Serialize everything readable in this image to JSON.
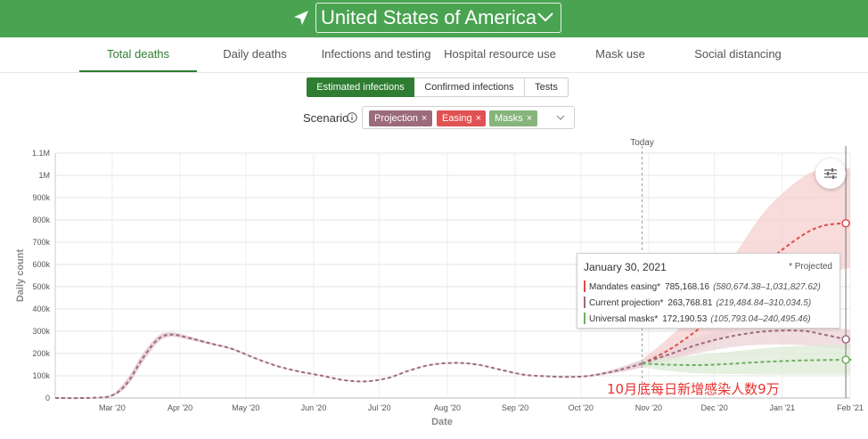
{
  "header": {
    "country": "United States of America",
    "location_icon": "location-arrow-icon",
    "chevron_icon": "chevron-down-icon",
    "color": "#4aa351"
  },
  "tabs": [
    {
      "label": "Total deaths",
      "active": true
    },
    {
      "label": "Daily deaths",
      "active": false
    },
    {
      "label": "Infections and testing",
      "active": false
    },
    {
      "label": "Hospital resource use",
      "active": false
    },
    {
      "label": "Mask use",
      "active": false
    },
    {
      "label": "Social distancing",
      "active": false
    }
  ],
  "toggle": [
    {
      "label": "Estimated infections",
      "active": true
    },
    {
      "label": "Confirmed infections",
      "active": false
    },
    {
      "label": "Tests",
      "active": false
    }
  ],
  "scenario": {
    "label": "Scenario",
    "chips": [
      {
        "label": "Projection",
        "color": "#9c6b7a"
      },
      {
        "label": "Easing",
        "color": "#e05253"
      },
      {
        "label": "Masks",
        "color": "#86b57c"
      }
    ],
    "remove_glyph": "×"
  },
  "chart_data": {
    "type": "line",
    "ylabel": "Daily count",
    "xlabel": "Date",
    "today_label": "Today",
    "today_date": "2020-10-29",
    "xlim": [
      "2020-02-04",
      "2021-02-01"
    ],
    "ylim": [
      0,
      1100000
    ],
    "yticks": [
      {
        "value": 0,
        "label": "0"
      },
      {
        "value": 100000,
        "label": "100k"
      },
      {
        "value": 200000,
        "label": "200k"
      },
      {
        "value": 300000,
        "label": "300k"
      },
      {
        "value": 400000,
        "label": "400k"
      },
      {
        "value": 500000,
        "label": "500k"
      },
      {
        "value": 600000,
        "label": "600k"
      },
      {
        "value": 700000,
        "label": "700k"
      },
      {
        "value": 800000,
        "label": "800k"
      },
      {
        "value": 900000,
        "label": "900k"
      },
      {
        "value": 1000000,
        "label": "1M"
      },
      {
        "value": 1100000,
        "label": "1.1M"
      }
    ],
    "xticks": [
      {
        "date": "2020-03-01",
        "label": "Mar '20"
      },
      {
        "date": "2020-04-01",
        "label": "Apr '20"
      },
      {
        "date": "2020-05-01",
        "label": "May '20"
      },
      {
        "date": "2020-06-01",
        "label": "Jun '20"
      },
      {
        "date": "2020-07-01",
        "label": "Jul '20"
      },
      {
        "date": "2020-08-01",
        "label": "Aug '20"
      },
      {
        "date": "2020-09-01",
        "label": "Sep '20"
      },
      {
        "date": "2020-10-01",
        "label": "Oct '20"
      },
      {
        "date": "2020-11-01",
        "label": "Nov '20"
      },
      {
        "date": "2020-12-01",
        "label": "Dec '20"
      },
      {
        "date": "2021-01-01",
        "label": "Jan '21"
      },
      {
        "date": "2021-02-01",
        "label": "Feb '21"
      }
    ],
    "grid": true,
    "history": {
      "color": "#9c6b7a",
      "band_color": "#e8cfd5",
      "points": [
        {
          "x": "2020-02-04",
          "y": 0,
          "lo": 0,
          "hi": 0
        },
        {
          "x": "2020-02-20",
          "y": 1000,
          "lo": 0,
          "hi": 2000
        },
        {
          "x": "2020-03-01",
          "y": 12000,
          "lo": 8000,
          "hi": 18000
        },
        {
          "x": "2020-03-08",
          "y": 70000,
          "lo": 55000,
          "hi": 90000
        },
        {
          "x": "2020-03-15",
          "y": 180000,
          "lo": 160000,
          "hi": 200000
        },
        {
          "x": "2020-03-22",
          "y": 265000,
          "lo": 250000,
          "hi": 280000
        },
        {
          "x": "2020-03-28",
          "y": 285000,
          "lo": 275000,
          "hi": 295000
        },
        {
          "x": "2020-04-05",
          "y": 270000,
          "lo": 262000,
          "hi": 278000
        },
        {
          "x": "2020-04-15",
          "y": 245000,
          "lo": 240000,
          "hi": 250000
        },
        {
          "x": "2020-04-25",
          "y": 220000,
          "lo": 216000,
          "hi": 224000
        },
        {
          "x": "2020-05-05",
          "y": 180000,
          "lo": 177000,
          "hi": 183000
        },
        {
          "x": "2020-05-15",
          "y": 145000,
          "lo": 143000,
          "hi": 147000
        },
        {
          "x": "2020-05-25",
          "y": 120000,
          "lo": 118000,
          "hi": 122000
        },
        {
          "x": "2020-06-05",
          "y": 100000,
          "lo": 98000,
          "hi": 102000
        },
        {
          "x": "2020-06-15",
          "y": 80000,
          "lo": 78000,
          "hi": 82000
        },
        {
          "x": "2020-06-25",
          "y": 75000,
          "lo": 73000,
          "hi": 77000
        },
        {
          "x": "2020-07-05",
          "y": 90000,
          "lo": 88000,
          "hi": 92000
        },
        {
          "x": "2020-07-15",
          "y": 125000,
          "lo": 123000,
          "hi": 127000
        },
        {
          "x": "2020-07-25",
          "y": 150000,
          "lo": 148000,
          "hi": 152000
        },
        {
          "x": "2020-08-05",
          "y": 158000,
          "lo": 156000,
          "hi": 160000
        },
        {
          "x": "2020-08-15",
          "y": 150000,
          "lo": 148000,
          "hi": 152000
        },
        {
          "x": "2020-08-25",
          "y": 128000,
          "lo": 126000,
          "hi": 130000
        },
        {
          "x": "2020-09-05",
          "y": 105000,
          "lo": 103000,
          "hi": 107000
        },
        {
          "x": "2020-09-15",
          "y": 98000,
          "lo": 96000,
          "hi": 100000
        },
        {
          "x": "2020-09-25",
          "y": 95000,
          "lo": 93000,
          "hi": 97000
        },
        {
          "x": "2020-10-05",
          "y": 100000,
          "lo": 96000,
          "hi": 104000
        },
        {
          "x": "2020-10-15",
          "y": 118000,
          "lo": 110000,
          "hi": 126000
        },
        {
          "x": "2020-10-22",
          "y": 135000,
          "lo": 122000,
          "hi": 148000
        },
        {
          "x": "2020-10-29",
          "y": 155000,
          "lo": 138000,
          "hi": 172000
        }
      ]
    },
    "series": [
      {
        "name": "Mandates easing*",
        "color": "#e24a4a",
        "band_color": "#f6cfcf",
        "points": [
          {
            "x": "2020-10-29",
            "y": 155000,
            "lo": 138000,
            "hi": 175000
          },
          {
            "x": "2020-11-10",
            "y": 215000,
            "lo": 170000,
            "hi": 270000
          },
          {
            "x": "2020-11-25",
            "y": 320000,
            "lo": 225000,
            "hi": 420000
          },
          {
            "x": "2020-12-10",
            "y": 460000,
            "lo": 300000,
            "hi": 640000
          },
          {
            "x": "2020-12-25",
            "y": 610000,
            "lo": 410000,
            "hi": 850000
          },
          {
            "x": "2021-01-10",
            "y": 730000,
            "lo": 510000,
            "hi": 990000
          },
          {
            "x": "2021-01-20",
            "y": 775000,
            "lo": 560000,
            "hi": 1030000
          },
          {
            "x": "2021-01-30",
            "y": 785168.16,
            "lo": 580674.38,
            "hi": 1031827.62
          },
          {
            "x": "2021-02-01",
            "y": 786000,
            "lo": 582000,
            "hi": 1032000
          }
        ]
      },
      {
        "name": "Current projection*",
        "color": "#9c6b7a",
        "band_color": "#ecd3d8",
        "points": [
          {
            "x": "2020-10-29",
            "y": 155000,
            "lo": 138000,
            "hi": 172000
          },
          {
            "x": "2020-11-10",
            "y": 195000,
            "lo": 170000,
            "hi": 222000
          },
          {
            "x": "2020-11-25",
            "y": 245000,
            "lo": 205000,
            "hi": 280000
          },
          {
            "x": "2020-12-10",
            "y": 280000,
            "lo": 230000,
            "hi": 310000
          },
          {
            "x": "2020-12-25",
            "y": 300000,
            "lo": 240000,
            "hi": 325000
          },
          {
            "x": "2021-01-10",
            "y": 302000,
            "lo": 238000,
            "hi": 330000
          },
          {
            "x": "2021-01-20",
            "y": 285000,
            "lo": 228000,
            "hi": 320000
          },
          {
            "x": "2021-01-30",
            "y": 263768.81,
            "lo": 219484.84,
            "hi": 310034.5
          },
          {
            "x": "2021-02-01",
            "y": 262000,
            "lo": 218000,
            "hi": 309000
          }
        ]
      },
      {
        "name": "Universal masks*",
        "color": "#6fae5f",
        "band_color": "#dcebd6",
        "points": [
          {
            "x": "2020-10-29",
            "y": 155000,
            "lo": 138000,
            "hi": 172000
          },
          {
            "x": "2020-11-10",
            "y": 150000,
            "lo": 122000,
            "hi": 180000
          },
          {
            "x": "2020-11-25",
            "y": 148000,
            "lo": 110000,
            "hi": 195000
          },
          {
            "x": "2020-12-10",
            "y": 155000,
            "lo": 108000,
            "hi": 210000
          },
          {
            "x": "2020-12-25",
            "y": 163000,
            "lo": 106000,
            "hi": 225000
          },
          {
            "x": "2021-01-10",
            "y": 169000,
            "lo": 105500,
            "hi": 235000
          },
          {
            "x": "2021-01-30",
            "y": 172190.53,
            "lo": 105793.04,
            "hi": 240495.46
          },
          {
            "x": "2021-02-01",
            "y": 172300,
            "lo": 105800,
            "hi": 240600
          }
        ]
      }
    ],
    "tooltip": {
      "date": "January 30, 2021",
      "note": "* Projected",
      "rows": [
        {
          "name": "Mandates easing*",
          "value": "785,168.16",
          "range": "(580,674.38–1,031,827.62)",
          "color": "#e24a4a"
        },
        {
          "name": "Current projection*",
          "value": "263,768.81",
          "range": "(219,484.84–310,034.5)",
          "color": "#9c6b7a"
        },
        {
          "name": "Universal masks*",
          "value": "172,190.53",
          "range": "(105,793.04–240,495.46)",
          "color": "#6fae5f"
        }
      ]
    }
  },
  "settings_icon": "sliders-icon",
  "annotation": "10月底每日新增感染人数9万"
}
